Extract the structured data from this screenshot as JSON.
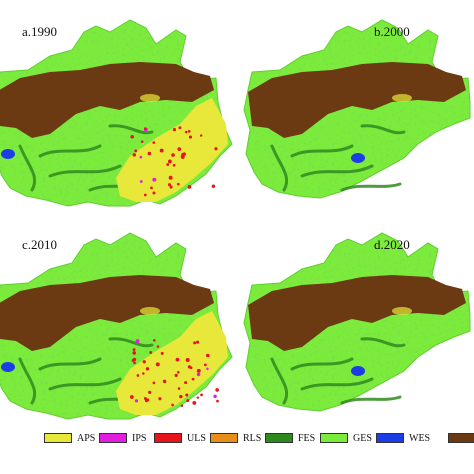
{
  "panels": [
    {
      "label": "a.1990",
      "has_urban_growth": true,
      "urban_intensity": 0.6
    },
    {
      "label": "b.2000",
      "has_urban_growth": false,
      "urban_intensity": 0.0
    },
    {
      "label": "c.2010",
      "has_urban_growth": true,
      "urban_intensity": 0.85
    },
    {
      "label": "d.2020",
      "has_urban_growth": false,
      "urban_intensity": 0.0
    }
  ],
  "legend": [
    {
      "code": "APS",
      "color": "#e8e83a"
    },
    {
      "code": "IPS",
      "color": "#e21ee0"
    },
    {
      "code": "ULS",
      "color": "#e8141c"
    },
    {
      "code": "RLS",
      "color": "#e88c1a"
    },
    {
      "code": "FES",
      "color": "#2f8a1e"
    },
    {
      "code": "GES",
      "color": "#7cec3c"
    },
    {
      "code": "WES",
      "color": "#1c3ce6"
    },
    {
      "code": "",
      "color": "#6b3a12"
    }
  ],
  "colors": {
    "grassland": "#7cec3c",
    "grassland_dark": "#5fcf2e",
    "forest": "#2f8a1e",
    "desert": "#6b3a12",
    "cropland": "#e8e83a",
    "water": "#1c3ce6",
    "urban": "#e8141c",
    "industrial": "#e21ee0"
  }
}
